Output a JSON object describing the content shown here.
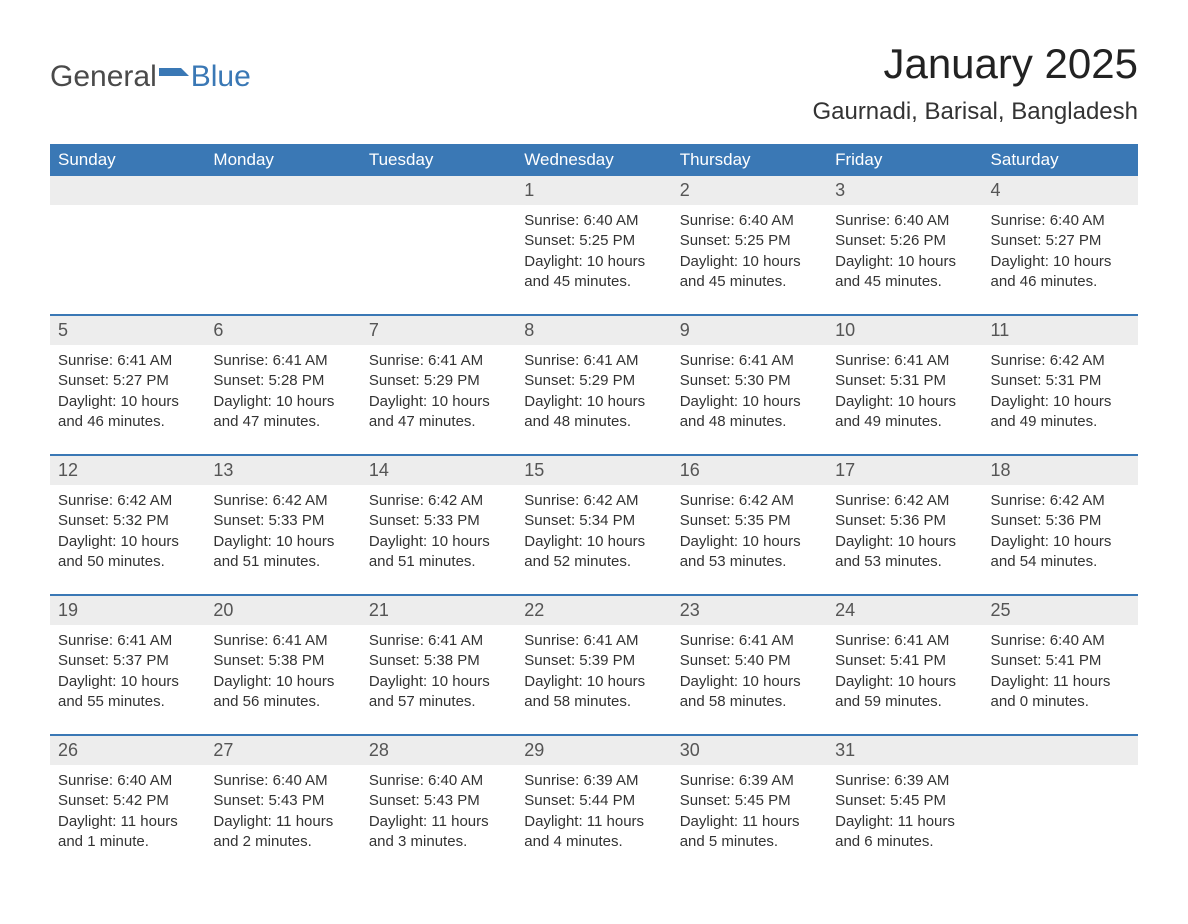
{
  "logo": {
    "text_general": "General",
    "text_blue": "Blue"
  },
  "header": {
    "month_title": "January 2025",
    "location": "Gaurnadi, Barisal, Bangladesh"
  },
  "colors": {
    "header_bg": "#3a78b5",
    "header_text": "#ffffff",
    "daynum_bg": "#ededed",
    "row_border": "#3a78b5",
    "page_bg": "#ffffff",
    "body_text": "#333333"
  },
  "days_of_week": [
    "Sunday",
    "Monday",
    "Tuesday",
    "Wednesday",
    "Thursday",
    "Friday",
    "Saturday"
  ],
  "weeks": [
    [
      {
        "day": "",
        "sunrise": "",
        "sunset": "",
        "daylight": ""
      },
      {
        "day": "",
        "sunrise": "",
        "sunset": "",
        "daylight": ""
      },
      {
        "day": "",
        "sunrise": "",
        "sunset": "",
        "daylight": ""
      },
      {
        "day": "1",
        "sunrise": "Sunrise: 6:40 AM",
        "sunset": "Sunset: 5:25 PM",
        "daylight": "Daylight: 10 hours and 45 minutes."
      },
      {
        "day": "2",
        "sunrise": "Sunrise: 6:40 AM",
        "sunset": "Sunset: 5:25 PM",
        "daylight": "Daylight: 10 hours and 45 minutes."
      },
      {
        "day": "3",
        "sunrise": "Sunrise: 6:40 AM",
        "sunset": "Sunset: 5:26 PM",
        "daylight": "Daylight: 10 hours and 45 minutes."
      },
      {
        "day": "4",
        "sunrise": "Sunrise: 6:40 AM",
        "sunset": "Sunset: 5:27 PM",
        "daylight": "Daylight: 10 hours and 46 minutes."
      }
    ],
    [
      {
        "day": "5",
        "sunrise": "Sunrise: 6:41 AM",
        "sunset": "Sunset: 5:27 PM",
        "daylight": "Daylight: 10 hours and 46 minutes."
      },
      {
        "day": "6",
        "sunrise": "Sunrise: 6:41 AM",
        "sunset": "Sunset: 5:28 PM",
        "daylight": "Daylight: 10 hours and 47 minutes."
      },
      {
        "day": "7",
        "sunrise": "Sunrise: 6:41 AM",
        "sunset": "Sunset: 5:29 PM",
        "daylight": "Daylight: 10 hours and 47 minutes."
      },
      {
        "day": "8",
        "sunrise": "Sunrise: 6:41 AM",
        "sunset": "Sunset: 5:29 PM",
        "daylight": "Daylight: 10 hours and 48 minutes."
      },
      {
        "day": "9",
        "sunrise": "Sunrise: 6:41 AM",
        "sunset": "Sunset: 5:30 PM",
        "daylight": "Daylight: 10 hours and 48 minutes."
      },
      {
        "day": "10",
        "sunrise": "Sunrise: 6:41 AM",
        "sunset": "Sunset: 5:31 PM",
        "daylight": "Daylight: 10 hours and 49 minutes."
      },
      {
        "day": "11",
        "sunrise": "Sunrise: 6:42 AM",
        "sunset": "Sunset: 5:31 PM",
        "daylight": "Daylight: 10 hours and 49 minutes."
      }
    ],
    [
      {
        "day": "12",
        "sunrise": "Sunrise: 6:42 AM",
        "sunset": "Sunset: 5:32 PM",
        "daylight": "Daylight: 10 hours and 50 minutes."
      },
      {
        "day": "13",
        "sunrise": "Sunrise: 6:42 AM",
        "sunset": "Sunset: 5:33 PM",
        "daylight": "Daylight: 10 hours and 51 minutes."
      },
      {
        "day": "14",
        "sunrise": "Sunrise: 6:42 AM",
        "sunset": "Sunset: 5:33 PM",
        "daylight": "Daylight: 10 hours and 51 minutes."
      },
      {
        "day": "15",
        "sunrise": "Sunrise: 6:42 AM",
        "sunset": "Sunset: 5:34 PM",
        "daylight": "Daylight: 10 hours and 52 minutes."
      },
      {
        "day": "16",
        "sunrise": "Sunrise: 6:42 AM",
        "sunset": "Sunset: 5:35 PM",
        "daylight": "Daylight: 10 hours and 53 minutes."
      },
      {
        "day": "17",
        "sunrise": "Sunrise: 6:42 AM",
        "sunset": "Sunset: 5:36 PM",
        "daylight": "Daylight: 10 hours and 53 minutes."
      },
      {
        "day": "18",
        "sunrise": "Sunrise: 6:42 AM",
        "sunset": "Sunset: 5:36 PM",
        "daylight": "Daylight: 10 hours and 54 minutes."
      }
    ],
    [
      {
        "day": "19",
        "sunrise": "Sunrise: 6:41 AM",
        "sunset": "Sunset: 5:37 PM",
        "daylight": "Daylight: 10 hours and 55 minutes."
      },
      {
        "day": "20",
        "sunrise": "Sunrise: 6:41 AM",
        "sunset": "Sunset: 5:38 PM",
        "daylight": "Daylight: 10 hours and 56 minutes."
      },
      {
        "day": "21",
        "sunrise": "Sunrise: 6:41 AM",
        "sunset": "Sunset: 5:38 PM",
        "daylight": "Daylight: 10 hours and 57 minutes."
      },
      {
        "day": "22",
        "sunrise": "Sunrise: 6:41 AM",
        "sunset": "Sunset: 5:39 PM",
        "daylight": "Daylight: 10 hours and 58 minutes."
      },
      {
        "day": "23",
        "sunrise": "Sunrise: 6:41 AM",
        "sunset": "Sunset: 5:40 PM",
        "daylight": "Daylight: 10 hours and 58 minutes."
      },
      {
        "day": "24",
        "sunrise": "Sunrise: 6:41 AM",
        "sunset": "Sunset: 5:41 PM",
        "daylight": "Daylight: 10 hours and 59 minutes."
      },
      {
        "day": "25",
        "sunrise": "Sunrise: 6:40 AM",
        "sunset": "Sunset: 5:41 PM",
        "daylight": "Daylight: 11 hours and 0 minutes."
      }
    ],
    [
      {
        "day": "26",
        "sunrise": "Sunrise: 6:40 AM",
        "sunset": "Sunset: 5:42 PM",
        "daylight": "Daylight: 11 hours and 1 minute."
      },
      {
        "day": "27",
        "sunrise": "Sunrise: 6:40 AM",
        "sunset": "Sunset: 5:43 PM",
        "daylight": "Daylight: 11 hours and 2 minutes."
      },
      {
        "day": "28",
        "sunrise": "Sunrise: 6:40 AM",
        "sunset": "Sunset: 5:43 PM",
        "daylight": "Daylight: 11 hours and 3 minutes."
      },
      {
        "day": "29",
        "sunrise": "Sunrise: 6:39 AM",
        "sunset": "Sunset: 5:44 PM",
        "daylight": "Daylight: 11 hours and 4 minutes."
      },
      {
        "day": "30",
        "sunrise": "Sunrise: 6:39 AM",
        "sunset": "Sunset: 5:45 PM",
        "daylight": "Daylight: 11 hours and 5 minutes."
      },
      {
        "day": "31",
        "sunrise": "Sunrise: 6:39 AM",
        "sunset": "Sunset: 5:45 PM",
        "daylight": "Daylight: 11 hours and 6 minutes."
      },
      {
        "day": "",
        "sunrise": "",
        "sunset": "",
        "daylight": ""
      }
    ]
  ]
}
